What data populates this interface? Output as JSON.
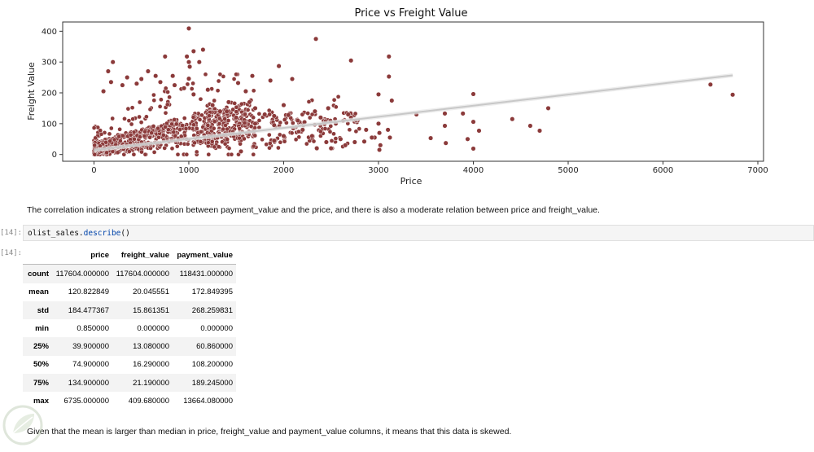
{
  "chart_data": {
    "type": "scatter",
    "title": "Price vs Freight Value",
    "xlabel": "Price",
    "ylabel": "Freight Value",
    "xlim": [
      -330,
      7060
    ],
    "ylim": [
      -22,
      430
    ],
    "xticks": [
      0,
      1000,
      2000,
      3000,
      4000,
      5000,
      6000,
      7000
    ],
    "yticks": [
      0,
      100,
      200,
      300,
      400
    ],
    "grid": false,
    "point_color": "#8b3a3a",
    "regression_color": "#c8c8c8",
    "regression_line": {
      "x": [
        0,
        6735
      ],
      "y": [
        14,
        257
      ]
    },
    "points": [
      [
        1000,
        409
      ],
      [
        1150,
        340
      ],
      [
        1050,
        335
      ],
      [
        980,
        318
      ],
      [
        1000,
        300
      ],
      [
        1010,
        285
      ],
      [
        1110,
        300
      ],
      [
        750,
        318
      ],
      [
        2340,
        375
      ],
      [
        2710,
        305
      ],
      [
        3110,
        318
      ],
      [
        1950,
        287
      ],
      [
        3110,
        253
      ],
      [
        1000,
        246
      ],
      [
        830,
        255
      ],
      [
        1520,
        232
      ],
      [
        1670,
        255
      ],
      [
        2090,
        245
      ],
      [
        1860,
        240
      ],
      [
        3000,
        195
      ],
      [
        3140,
        175
      ],
      [
        4000,
        196
      ],
      [
        4000,
        106
      ],
      [
        6500,
        227
      ],
      [
        6735,
        194
      ],
      [
        4790,
        150
      ],
      [
        4410,
        115
      ],
      [
        4600,
        93
      ],
      [
        4700,
        77
      ],
      [
        4060,
        77
      ],
      [
        3700,
        133
      ],
      [
        3890,
        133
      ],
      [
        3700,
        93
      ],
      [
        3710,
        37
      ],
      [
        3550,
        53
      ],
      [
        3940,
        50
      ],
      [
        4000,
        19
      ],
      [
        3000,
        100
      ],
      [
        3010,
        70
      ],
      [
        3020,
        30
      ],
      [
        3120,
        55
      ],
      [
        3100,
        80
      ],
      [
        2960,
        55
      ],
      [
        2870,
        80
      ],
      [
        2680,
        130
      ],
      [
        2710,
        120
      ],
      [
        2550,
        100
      ],
      [
        2330,
        140
      ],
      [
        2470,
        150
      ],
      [
        2220,
        105
      ],
      [
        2390,
        120
      ],
      [
        1700,
        150
      ],
      [
        1640,
        170
      ],
      [
        1420,
        170
      ],
      [
        1330,
        140
      ],
      [
        1250,
        160
      ],
      [
        1800,
        130
      ],
      [
        1900,
        125
      ],
      [
        2050,
        128
      ],
      [
        2000,
        160
      ],
      [
        2150,
        110
      ],
      [
        2200,
        80
      ],
      [
        2300,
        60
      ],
      [
        2450,
        40
      ],
      [
        2600,
        50
      ],
      [
        2750,
        40
      ],
      [
        2850,
        42
      ],
      [
        2650,
        30
      ],
      [
        2500,
        20
      ],
      [
        3010,
        15
      ],
      [
        2930,
        55
      ],
      [
        1600,
        205
      ],
      [
        1200,
        210
      ],
      [
        1050,
        195
      ],
      [
        950,
        215
      ],
      [
        850,
        225
      ],
      [
        700,
        235
      ],
      [
        650,
        255
      ],
      [
        570,
        270
      ],
      [
        500,
        245
      ],
      [
        450,
        230
      ],
      [
        350,
        250
      ],
      [
        300,
        225
      ],
      [
        200,
        300
      ],
      [
        150,
        270
      ],
      [
        180,
        235
      ],
      [
        100,
        205
      ],
      [
        1400,
        140
      ],
      [
        1500,
        120
      ],
      [
        1700,
        100
      ],
      [
        1900,
        95
      ],
      [
        2100,
        85
      ],
      [
        3400,
        130
      ],
      [
        1900,
        45
      ],
      [
        2000,
        60
      ],
      [
        2350,
        20
      ],
      [
        1550,
        10
      ]
    ]
  },
  "markdown": {
    "correlation_note": "The correlation indicates a strong relation between payment_value and the price, and there is also a moderate relation between price and freight_value.",
    "skew_note": "Given that the mean is larger than median in price, freight_value and payment_value columns, it means that this data is skewed."
  },
  "cell": {
    "in_prompt": "[14]:",
    "out_prompt": "[14]:",
    "code_object": "olist_sales.",
    "code_method": "describe",
    "code_suffix": "()"
  },
  "describe_table": {
    "columns": [
      "",
      "price",
      "freight_value",
      "payment_value"
    ],
    "rows": [
      {
        "stat": "count",
        "values": [
          "117604.000000",
          "117604.000000",
          "118431.000000"
        ]
      },
      {
        "stat": "mean",
        "values": [
          "120.822849",
          "20.045551",
          "172.849395"
        ]
      },
      {
        "stat": "std",
        "values": [
          "184.477367",
          "15.861351",
          "268.259831"
        ]
      },
      {
        "stat": "min",
        "values": [
          "0.850000",
          "0.000000",
          "0.000000"
        ]
      },
      {
        "stat": "25%",
        "values": [
          "39.900000",
          "13.080000",
          "60.860000"
        ]
      },
      {
        "stat": "50%",
        "values": [
          "74.900000",
          "16.290000",
          "108.200000"
        ]
      },
      {
        "stat": "75%",
        "values": [
          "134.900000",
          "21.190000",
          "189.245000"
        ]
      },
      {
        "stat": "max",
        "values": [
          "6735.000000",
          "409.680000",
          "13664.080000"
        ]
      }
    ]
  },
  "watermark_icon": "leaf-logo-icon"
}
